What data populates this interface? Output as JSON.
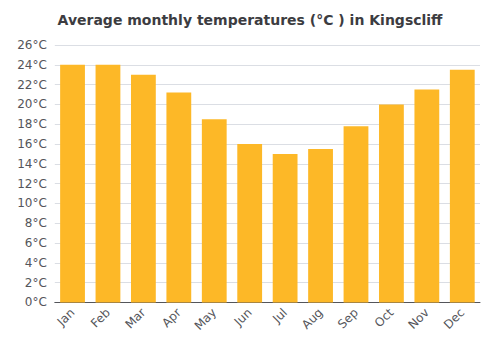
{
  "chart_data": {
    "type": "bar",
    "title": "Average monthly temperatures (°C ) in Kingscliff",
    "categories": [
      "Jan",
      "Feb",
      "Mar",
      "Apr",
      "May",
      "Jun",
      "Jul",
      "Aug",
      "Sep",
      "Oct",
      "Nov",
      "Dec"
    ],
    "values": [
      24.0,
      24.0,
      23.0,
      21.2,
      18.5,
      16.0,
      15.0,
      15.5,
      17.8,
      20.0,
      21.5,
      23.5
    ],
    "color": "#FDB827",
    "ylim": [
      0,
      26
    ],
    "yticks": [
      {
        "value": 0,
        "label": "0°C"
      },
      {
        "value": 2,
        "label": "2°C"
      },
      {
        "value": 4,
        "label": "4°C"
      },
      {
        "value": 6,
        "label": "6°C"
      },
      {
        "value": 8,
        "label": "8°C"
      },
      {
        "value": 10,
        "label": "10°C"
      },
      {
        "value": 12,
        "label": "12°C"
      },
      {
        "value": 14,
        "label": "14°C"
      },
      {
        "value": 16,
        "label": "16°C"
      },
      {
        "value": 18,
        "label": "18°C"
      },
      {
        "value": 20,
        "label": "20°C"
      },
      {
        "value": 22,
        "label": "22°C"
      },
      {
        "value": 24,
        "label": "24°C"
      },
      {
        "value": 26,
        "label": "26°C"
      }
    ],
    "grid": true
  }
}
